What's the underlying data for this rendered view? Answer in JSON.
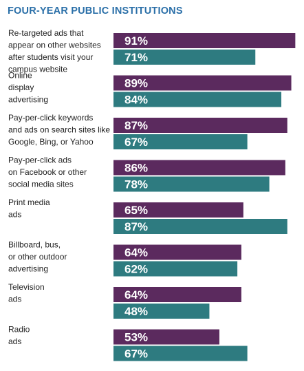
{
  "title": "FOUR-YEAR PUBLIC INSTITUTIONS",
  "colors": {
    "series1": "#5b2a5e",
    "series2": "#2e7b80",
    "title": "#2a6fa8"
  },
  "chart_data": {
    "type": "bar",
    "orientation": "horizontal",
    "title": "FOUR-YEAR PUBLIC INSTITUTIONS",
    "xlim": [
      0,
      100
    ],
    "grid": false,
    "legend": "none",
    "categories": [
      [
        "Re-targeted ads that",
        "appear on other websites",
        "after students visit your",
        "campus website"
      ],
      [
        "Online",
        "display",
        "advertising"
      ],
      [
        "Pay-per-click keywords",
        "and ads on search sites like",
        "Google, Bing, or Yahoo"
      ],
      [
        "Pay-per-click ads",
        "on Facebook or other",
        "social media sites"
      ],
      [
        "Print media",
        "ads"
      ],
      [
        "Billboard, bus,",
        "or other outdoor",
        "advertising"
      ],
      [
        "Television",
        "ads"
      ],
      [
        "Radio",
        "ads"
      ]
    ],
    "series": [
      {
        "values": [
          91,
          89,
          87,
          86,
          65,
          64,
          64,
          53
        ],
        "labels": [
          "91%",
          "89%",
          "87%",
          "86%",
          "65%",
          "64%",
          "64%",
          "53%"
        ]
      },
      {
        "values": [
          71,
          84,
          67,
          78,
          87,
          62,
          48,
          67
        ],
        "labels": [
          "71%",
          "84%",
          "67%",
          "78%",
          "87%",
          "62%",
          "48%",
          "67%"
        ]
      }
    ]
  }
}
